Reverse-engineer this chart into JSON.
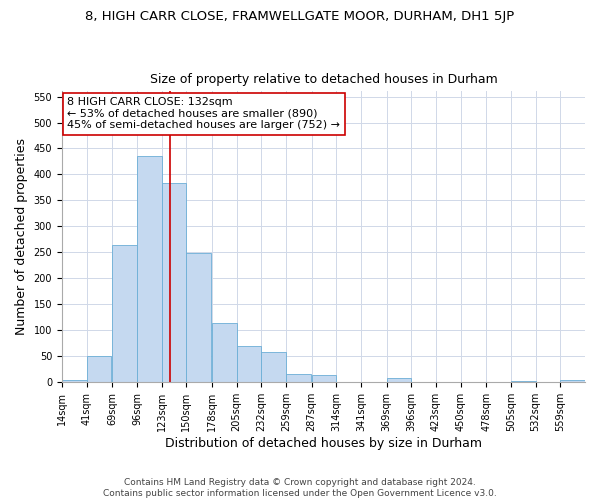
{
  "title_line1": "8, HIGH CARR CLOSE, FRAMWELLGATE MOOR, DURHAM, DH1 5JP",
  "title_line2": "Size of property relative to detached houses in Durham",
  "xlabel": "Distribution of detached houses by size in Durham",
  "ylabel": "Number of detached properties",
  "bin_labels": [
    "14sqm",
    "41sqm",
    "69sqm",
    "96sqm",
    "123sqm",
    "150sqm",
    "178sqm",
    "205sqm",
    "232sqm",
    "259sqm",
    "287sqm",
    "314sqm",
    "341sqm",
    "369sqm",
    "396sqm",
    "423sqm",
    "450sqm",
    "478sqm",
    "505sqm",
    "532sqm",
    "559sqm"
  ],
  "bar_values": [
    4,
    50,
    265,
    435,
    383,
    248,
    115,
    69,
    58,
    16,
    14,
    0,
    0,
    8,
    0,
    0,
    0,
    0,
    3,
    0,
    5
  ],
  "bin_edges": [
    14,
    41,
    69,
    96,
    123,
    150,
    178,
    205,
    232,
    259,
    287,
    314,
    341,
    369,
    396,
    423,
    450,
    478,
    505,
    532,
    559
  ],
  "bin_width": 27,
  "bar_color": "#c5d9f0",
  "bar_edge_color": "#6baed6",
  "vline_x": 132,
  "vline_color": "#cc0000",
  "annotation_text": "8 HIGH CARR CLOSE: 132sqm\n← 53% of detached houses are smaller (890)\n45% of semi-detached houses are larger (752) →",
  "annotation_box_color": "#ffffff",
  "annotation_box_edge_color": "#cc0000",
  "ylim": [
    0,
    560
  ],
  "yticks": [
    0,
    50,
    100,
    150,
    200,
    250,
    300,
    350,
    400,
    450,
    500,
    550
  ],
  "footer_text": "Contains HM Land Registry data © Crown copyright and database right 2024.\nContains public sector information licensed under the Open Government Licence v3.0.",
  "background_color": "#ffffff",
  "plot_bg_color": "#ffffff",
  "grid_color": "#d0d8e8",
  "title_fontsize": 9.5,
  "subtitle_fontsize": 9,
  "axis_label_fontsize": 9,
  "tick_fontsize": 7,
  "annotation_fontsize": 8,
  "footer_fontsize": 6.5
}
